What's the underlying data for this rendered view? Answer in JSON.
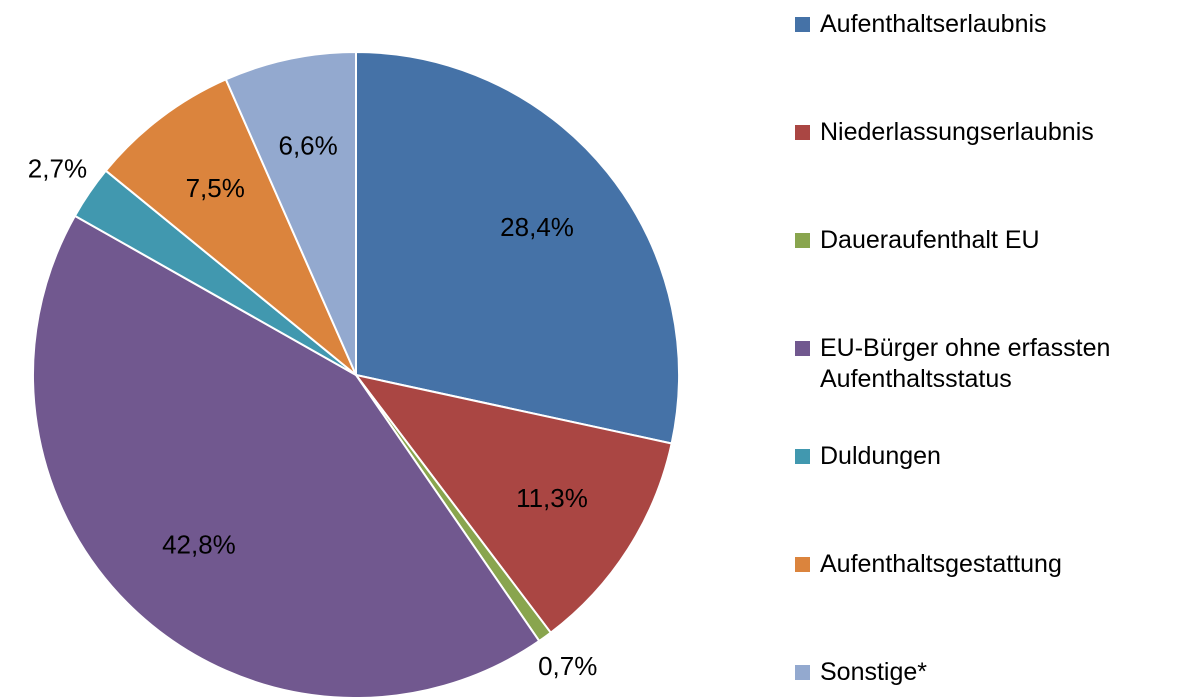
{
  "chart_data": {
    "type": "pie",
    "categories": [
      "Aufenthaltserlaubnis",
      "Niederlassungserlaubnis",
      "Daueraufenthalt EU",
      "EU-Bürger ohne erfassten Aufenthaltsstatus",
      "Duldungen",
      "Aufenthaltsgestattung",
      "Sonstige*"
    ],
    "values": [
      28.4,
      11.3,
      0.7,
      42.8,
      2.7,
      7.5,
      6.6
    ],
    "value_labels": [
      "28,4%",
      "11,3%",
      "0,7%",
      "42,8%",
      "2,7%",
      "7,5%",
      "6,6%"
    ],
    "colors": [
      "#4572a7",
      "#aa4643",
      "#89a54e",
      "#71588f",
      "#4198af",
      "#db843d",
      "#93a9cf"
    ],
    "legend": "right"
  }
}
